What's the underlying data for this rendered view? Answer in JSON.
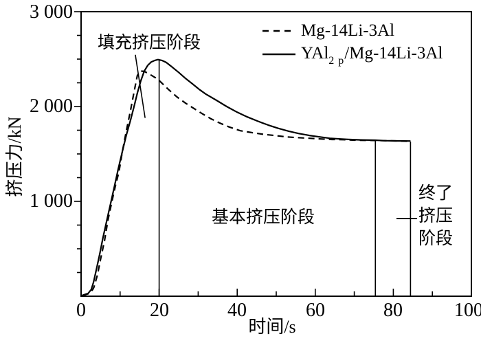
{
  "figure": {
    "background": "#ffffff",
    "line_color": "#000000"
  },
  "legend": {
    "items": [
      {
        "label": "Mg-14Li-3Al",
        "style": "dashed"
      },
      {
        "label_prefix": "YAl",
        "label_sub": "2 p",
        "label_suffix": "/Mg-14Li-3Al",
        "style": "solid"
      }
    ]
  },
  "annotations": {
    "fill_stage": "填充挤压阶段",
    "basic_stage": "基本挤压阶段",
    "final_stage": "终了\n挤压\n阶段"
  },
  "chart_data": {
    "type": "line",
    "title": "",
    "xlabel": "时间/s",
    "ylabel": "挤压力/kN",
    "xlim": [
      0,
      100
    ],
    "ylim": [
      0,
      3000
    ],
    "x_major_step": 20,
    "x_minor_step": 10,
    "y_major_step": 1000,
    "y_minor_step": 250,
    "x_tick_labels": [
      "0",
      "20",
      "40",
      "60",
      "80",
      "100"
    ],
    "y_tick_labels": [
      "1 000",
      "2 000",
      "3 000"
    ],
    "grid": false,
    "legend_position": "top-right-inside",
    "series": [
      {
        "name": "Mg-14Li-3Al",
        "style": "dashed",
        "points": [
          [
            0.6,
            0
          ],
          [
            0.7,
            10
          ],
          [
            2.1,
            30
          ],
          [
            3.0,
            70
          ],
          [
            3.3,
            95
          ],
          [
            4.2,
            225
          ],
          [
            4.9,
            370
          ],
          [
            6.0,
            585
          ],
          [
            6.9,
            805
          ],
          [
            7.9,
            1000
          ],
          [
            8.8,
            1165
          ],
          [
            9.7,
            1310
          ],
          [
            10.6,
            1530
          ],
          [
            11.6,
            1745
          ],
          [
            12.7,
            1965
          ],
          [
            13.7,
            2180
          ],
          [
            14.4,
            2325
          ],
          [
            15.1,
            2375
          ],
          [
            16.2,
            2370
          ],
          [
            17.6,
            2340
          ],
          [
            19.0,
            2305
          ],
          [
            20.1,
            2270
          ],
          [
            22.4,
            2180
          ],
          [
            24.6,
            2100
          ],
          [
            26.8,
            2035
          ],
          [
            28.9,
            1980
          ],
          [
            31.2,
            1920
          ],
          [
            33.3,
            1870
          ],
          [
            35.6,
            1825
          ],
          [
            37.9,
            1785
          ],
          [
            40.8,
            1745
          ],
          [
            43.8,
            1725
          ],
          [
            47.0,
            1705
          ],
          [
            49.6,
            1695
          ],
          [
            52.6,
            1680
          ],
          [
            55.5,
            1672
          ],
          [
            58.5,
            1665
          ],
          [
            61.4,
            1658
          ],
          [
            64.3,
            1652
          ],
          [
            67.3,
            1650
          ],
          [
            69.9,
            1645
          ],
          [
            75.4,
            1642
          ],
          [
            80.5,
            1638
          ],
          [
            84.4,
            1633
          ]
        ]
      },
      {
        "name": "YAl2p/Mg-14Li-3Al",
        "style": "solid",
        "points": [
          [
            0.3,
            0
          ],
          [
            0.4,
            10
          ],
          [
            1.8,
            30
          ],
          [
            2.6,
            70
          ],
          [
            3.2,
            150
          ],
          [
            3.9,
            280
          ],
          [
            4.8,
            450
          ],
          [
            5.6,
            615
          ],
          [
            6.7,
            820
          ],
          [
            7.6,
            985
          ],
          [
            8.5,
            1150
          ],
          [
            9.5,
            1340
          ],
          [
            10.6,
            1530
          ],
          [
            11.6,
            1700
          ],
          [
            12.7,
            1860
          ],
          [
            13.7,
            2020
          ],
          [
            14.4,
            2140
          ],
          [
            15.3,
            2270
          ],
          [
            16.2,
            2375
          ],
          [
            17.1,
            2435
          ],
          [
            18.0,
            2470
          ],
          [
            18.8,
            2485
          ],
          [
            19.7,
            2495
          ],
          [
            20.8,
            2485
          ],
          [
            21.8,
            2465
          ],
          [
            23.2,
            2420
          ],
          [
            25.0,
            2360
          ],
          [
            26.8,
            2295
          ],
          [
            28.5,
            2240
          ],
          [
            30.3,
            2180
          ],
          [
            32.0,
            2130
          ],
          [
            34.7,
            2065
          ],
          [
            37.3,
            2000
          ],
          [
            40.0,
            1940
          ],
          [
            42.6,
            1890
          ],
          [
            45.3,
            1845
          ],
          [
            47.9,
            1805
          ],
          [
            50.5,
            1770
          ],
          [
            53.2,
            1740
          ],
          [
            55.8,
            1715
          ],
          [
            58.5,
            1695
          ],
          [
            61.1,
            1680
          ],
          [
            63.7,
            1665
          ],
          [
            66.4,
            1658
          ],
          [
            69.0,
            1652
          ],
          [
            71.7,
            1648
          ],
          [
            75.4,
            1645
          ],
          [
            77.8,
            1640
          ],
          [
            80.5,
            1638
          ],
          [
            84.4,
            1636
          ]
        ]
      }
    ],
    "reference_vlines": [
      {
        "x": 20,
        "y_top": 2495,
        "y_bottom": 0
      },
      {
        "x": 75.4,
        "y_top": 1645,
        "y_bottom": 0
      },
      {
        "x": 84.4,
        "y_top": 1630,
        "y_bottom": 0
      }
    ],
    "pointer_line": {
      "x1": 13.9,
      "y1": 2545,
      "x2": 16.4,
      "y2": 1880
    },
    "leader_dash": {
      "y": 820,
      "x1": 80.8,
      "x2": 86.1
    }
  }
}
